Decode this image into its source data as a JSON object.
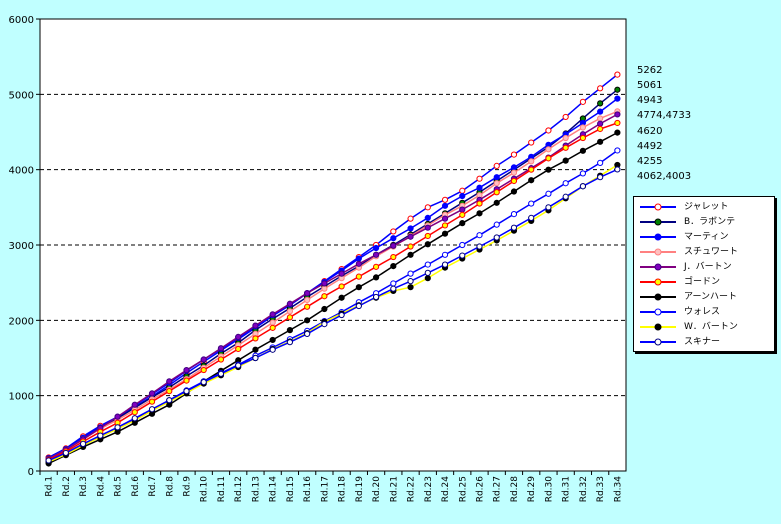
{
  "chart_data": {
    "type": "line",
    "title": "",
    "xlabel": "",
    "ylabel": "",
    "ylim": [
      0,
      6000
    ],
    "yticks": [
      0,
      1000,
      2000,
      3000,
      4000,
      5000,
      6000
    ],
    "grid": "horizontal dashed",
    "legend_position": "right",
    "plot_background": "#ffffff",
    "page_background": "#c0ffff",
    "categories": [
      "Rd.1",
      "Rd.2",
      "Rd.3",
      "Rd.4",
      "Rd.5",
      "Rd.6",
      "Rd.7",
      "Rd.8",
      "Rd.9",
      "Rd.10",
      "Rd.11",
      "Rd.12",
      "Rd.13",
      "Rd.14",
      "Rd.15",
      "Rd.16",
      "Rd.17",
      "Rd.18",
      "Rd.19",
      "Rd.20",
      "Rd.21",
      "Rd.22",
      "Rd.23",
      "Rd.24",
      "Rd.25",
      "Rd.26",
      "Rd.27",
      "Rd.28",
      "Rd.29",
      "Rd.30",
      "Rd.31",
      "Rd.32",
      "Rd.33",
      "Rd.34"
    ],
    "end_labels": [
      "5262",
      "5061",
      "4943",
      "4774,4733",
      "4620",
      "4492",
      "4255",
      "4062,4003"
    ],
    "series": [
      {
        "name": "ジャレット",
        "line": "#0000ff",
        "fill": "#ffffff",
        "edge": "#ff0000",
        "values": [
          180,
          300,
          460,
          600,
          720,
          850,
          990,
          1140,
          1300,
          1450,
          1600,
          1750,
          1900,
          2060,
          2200,
          2360,
          2520,
          2680,
          2840,
          3000,
          3180,
          3350,
          3500,
          3600,
          3720,
          3880,
          4050,
          4200,
          4360,
          4520,
          4700,
          4900,
          5080,
          5262
        ]
      },
      {
        "name": "B．ラボンテ",
        "line": "#000080",
        "fill": "#008000",
        "edge": "#000000",
        "values": [
          170,
          290,
          440,
          580,
          700,
          840,
          980,
          1110,
          1260,
          1400,
          1560,
          1700,
          1870,
          2020,
          2160,
          2310,
          2450,
          2590,
          2720,
          2870,
          3000,
          3140,
          3280,
          3420,
          3560,
          3700,
          3850,
          4000,
          4150,
          4300,
          4480,
          4680,
          4880,
          5061
        ]
      },
      {
        "name": "マーティン",
        "line": "#0000ff",
        "fill": "#0000ff",
        "edge": "#0000ff",
        "values": [
          170,
          290,
          440,
          580,
          720,
          870,
          1020,
          1170,
          1330,
          1480,
          1620,
          1770,
          1920,
          2070,
          2210,
          2360,
          2510,
          2660,
          2820,
          2960,
          3090,
          3220,
          3360,
          3520,
          3650,
          3760,
          3900,
          4030,
          4170,
          4330,
          4470,
          4620,
          4770,
          4943
        ]
      },
      {
        "name": "スチュワート",
        "line": "#ff8080",
        "fill": "#ffc0c0",
        "edge": "#ff8080",
        "values": [
          160,
          280,
          420,
          560,
          680,
          810,
          950,
          1080,
          1220,
          1370,
          1520,
          1670,
          1820,
          1970,
          2120,
          2270,
          2420,
          2560,
          2700,
          2850,
          2980,
          3120,
          3260,
          3400,
          3520,
          3660,
          3820,
          3960,
          4110,
          4270,
          4420,
          4560,
          4680,
          4774
        ]
      },
      {
        "name": "J．バートン",
        "line": "#800080",
        "fill": "#8000c0",
        "edge": "#400080",
        "values": [
          160,
          280,
          420,
          570,
          720,
          880,
          1030,
          1190,
          1340,
          1480,
          1630,
          1780,
          1930,
          2080,
          2220,
          2360,
          2490,
          2620,
          2750,
          2870,
          2990,
          3110,
          3230,
          3350,
          3470,
          3600,
          3740,
          3880,
          4020,
          4160,
          4320,
          4470,
          4610,
          4733
        ]
      },
      {
        "name": "ゴードン",
        "line": "#ff0000",
        "fill": "#ffff00",
        "edge": "#ff0000",
        "values": [
          150,
          260,
          390,
          520,
          640,
          780,
          920,
          1060,
          1200,
          1340,
          1480,
          1620,
          1760,
          1900,
          2040,
          2180,
          2320,
          2450,
          2580,
          2710,
          2840,
          2980,
          3120,
          3260,
          3400,
          3550,
          3700,
          3850,
          4000,
          4150,
          4290,
          4420,
          4540,
          4620
        ]
      },
      {
        "name": "アーンハート",
        "line": "#000000",
        "fill": "#000000",
        "edge": "#000000",
        "values": [
          100,
          210,
          320,
          420,
          520,
          640,
          760,
          880,
          1030,
          1190,
          1330,
          1470,
          1610,
          1740,
          1870,
          2000,
          2150,
          2300,
          2440,
          2570,
          2720,
          2870,
          3010,
          3150,
          3290,
          3420,
          3560,
          3710,
          3860,
          4000,
          4120,
          4250,
          4370,
          4492
        ]
      },
      {
        "name": "ウォレス",
        "line": "#0000ff",
        "fill": "#ffffff",
        "edge": "#0000ff",
        "values": [
          130,
          230,
          350,
          460,
          570,
          690,
          810,
          940,
          1070,
          1190,
          1300,
          1410,
          1530,
          1640,
          1750,
          1860,
          1990,
          2110,
          2240,
          2360,
          2490,
          2620,
          2740,
          2870,
          3000,
          3130,
          3270,
          3410,
          3550,
          3680,
          3820,
          3950,
          4090,
          4255
        ]
      },
      {
        "name": "W．バートン",
        "line": "#ffff00",
        "fill": "#000000",
        "edge": "#000000",
        "values": [
          120,
          220,
          340,
          450,
          560,
          670,
          800,
          920,
          1040,
          1160,
          1270,
          1380,
          1500,
          1620,
          1720,
          1830,
          1980,
          2090,
          2200,
          2300,
          2390,
          2440,
          2560,
          2700,
          2820,
          2940,
          3060,
          3190,
          3320,
          3460,
          3620,
          3780,
          3920,
          4062
        ]
      },
      {
        "name": "スキナー",
        "line": "#0000ff",
        "fill": "#ffffff",
        "edge": "#000080",
        "values": [
          140,
          240,
          360,
          470,
          580,
          700,
          820,
          940,
          1060,
          1180,
          1290,
          1400,
          1500,
          1610,
          1710,
          1820,
          1950,
          2070,
          2190,
          2310,
          2420,
          2520,
          2630,
          2740,
          2860,
          2980,
          3100,
          3230,
          3360,
          3500,
          3640,
          3780,
          3900,
          4003
        ]
      }
    ]
  }
}
